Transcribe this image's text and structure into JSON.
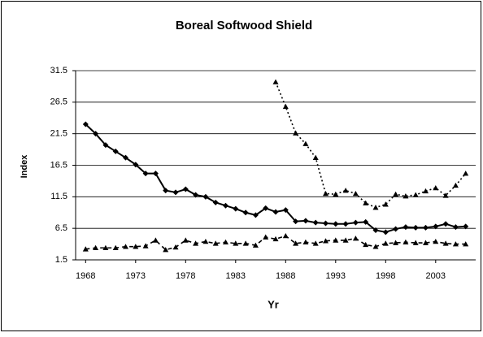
{
  "chart_data": {
    "type": "line",
    "title": "Boreal Softwood Shield",
    "xlabel": "Yr",
    "ylabel": "Index",
    "x": [
      1968,
      1969,
      1970,
      1971,
      1972,
      1973,
      1974,
      1975,
      1976,
      1977,
      1978,
      1979,
      1980,
      1981,
      1982,
      1983,
      1984,
      1985,
      1986,
      1987,
      1988,
      1989,
      1990,
      1991,
      1992,
      1993,
      1994,
      1995,
      1996,
      1997,
      1998,
      1999,
      2000,
      2001,
      2002,
      2003,
      2004,
      2005,
      2006
    ],
    "xlim": [
      1967,
      2007
    ],
    "xticks": [
      1968,
      1973,
      1978,
      1983,
      1988,
      1993,
      1998,
      2003
    ],
    "ylim": [
      1.5,
      31.5
    ],
    "yticks": [
      1.5,
      6.5,
      11.5,
      16.5,
      21.5,
      26.5,
      31.5
    ],
    "grid": true,
    "series": [
      {
        "color": "#000000",
        "dash": "solid",
        "marker": "diamond",
        "values": [
          23.0,
          21.5,
          19.7,
          18.7,
          17.7,
          16.6,
          15.2,
          15.2,
          12.5,
          12.2,
          12.7,
          11.8,
          11.5,
          10.6,
          10.1,
          9.6,
          9.0,
          8.6,
          9.7,
          9.1,
          9.4,
          7.6,
          7.7,
          7.4,
          7.3,
          7.2,
          7.2,
          7.4,
          7.5,
          6.2,
          5.9,
          6.4,
          6.7,
          6.6,
          6.6,
          6.8,
          7.2,
          6.7,
          6.8
        ]
      },
      {
        "color": "#000000",
        "dash": "dotted",
        "marker": "triangle",
        "values": [
          null,
          null,
          null,
          null,
          null,
          null,
          null,
          null,
          null,
          null,
          null,
          null,
          null,
          null,
          null,
          null,
          null,
          null,
          null,
          29.7,
          25.8,
          21.6,
          19.9,
          17.7,
          12.0,
          11.9,
          12.5,
          12.0,
          10.5,
          9.8,
          10.3,
          11.9,
          11.6,
          11.8,
          12.4,
          12.9,
          11.7,
          13.3,
          15.2
        ]
      },
      {
        "color": "#000000",
        "dash": "dashed",
        "marker": "triangle",
        "values": [
          3.2,
          3.4,
          3.4,
          3.4,
          3.6,
          3.6,
          3.7,
          4.6,
          3.1,
          3.5,
          4.6,
          4.1,
          4.4,
          4.1,
          4.3,
          4.1,
          4.1,
          3.8,
          5.1,
          4.8,
          5.3,
          4.1,
          4.3,
          4.1,
          4.5,
          4.6,
          4.6,
          4.9,
          3.9,
          3.6,
          4.1,
          4.2,
          4.3,
          4.2,
          4.2,
          4.4,
          4.1,
          4.0,
          4.0
        ]
      }
    ]
  }
}
